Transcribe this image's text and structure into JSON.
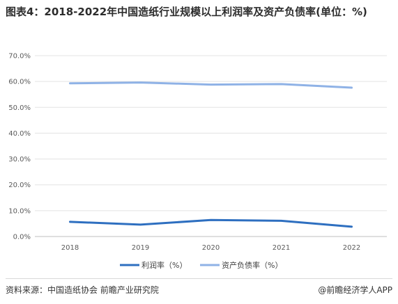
{
  "title": "图表4：2018-2022年中国造纸行业规模以上利润率及资产负债率(单位：%)",
  "footer": {
    "source": "资料来源：中国造纸协会 前瞻产业研究院",
    "brand": "@前瞻经济学人APP"
  },
  "chart_data": {
    "type": "line",
    "x": [
      "2018",
      "2019",
      "2020",
      "2021",
      "2022"
    ],
    "series": [
      {
        "name": "利润率（%）",
        "values": [
          5.7,
          4.6,
          6.4,
          6.1,
          3.8
        ],
        "color": "#2e6fc0"
      },
      {
        "name": "资产负债率（%）",
        "values": [
          59.3,
          59.6,
          58.8,
          59.0,
          57.6
        ],
        "color": "#8fb2e6"
      }
    ],
    "y_ticks": [
      "0.0%",
      "10.0%",
      "20.0%",
      "30.0%",
      "40.0%",
      "50.0%",
      "60.0%",
      "70.0%"
    ],
    "ylim": [
      0,
      70
    ],
    "grid": true,
    "legend": "bottom"
  }
}
